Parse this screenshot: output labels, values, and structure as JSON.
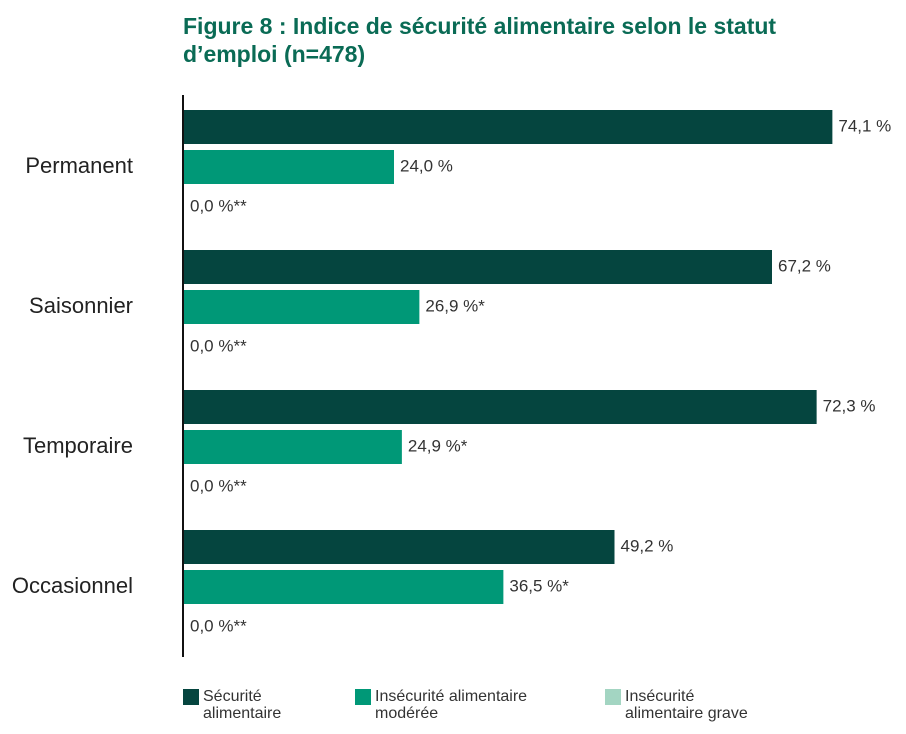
{
  "chart_data": {
    "type": "bar",
    "orientation": "horizontal",
    "title": "Figure 8 : Indice de sécurité alimentaire selon le statut d’emploi (n=478)",
    "categories": [
      "Permanent",
      "Saisonnier",
      "Temporaire",
      "Occasionnel"
    ],
    "series": [
      {
        "name": "Sécurité alimentaire",
        "color": "#05453f",
        "values": [
          74.1,
          67.2,
          72.3,
          49.2
        ],
        "value_labels": [
          "74,1 %",
          "67,2 %",
          "72,3 %",
          "49,2 %"
        ]
      },
      {
        "name": "Insécurité alimentaire modérée",
        "color": "#009877",
        "values": [
          24.0,
          26.9,
          24.9,
          36.5
        ],
        "value_labels": [
          "24,0 %",
          "26,9 %*",
          "24,9 %*",
          "36,5 %*"
        ]
      },
      {
        "name": "Insécurité alimentaire grave",
        "color": "#a3d5c2",
        "values": [
          0.0,
          0.0,
          0.0,
          0.0
        ],
        "value_labels": [
          "0,0 %**",
          "0,0 %**",
          "0,0 %**",
          "0,0 %**"
        ]
      }
    ],
    "xlim": [
      0,
      80
    ]
  }
}
